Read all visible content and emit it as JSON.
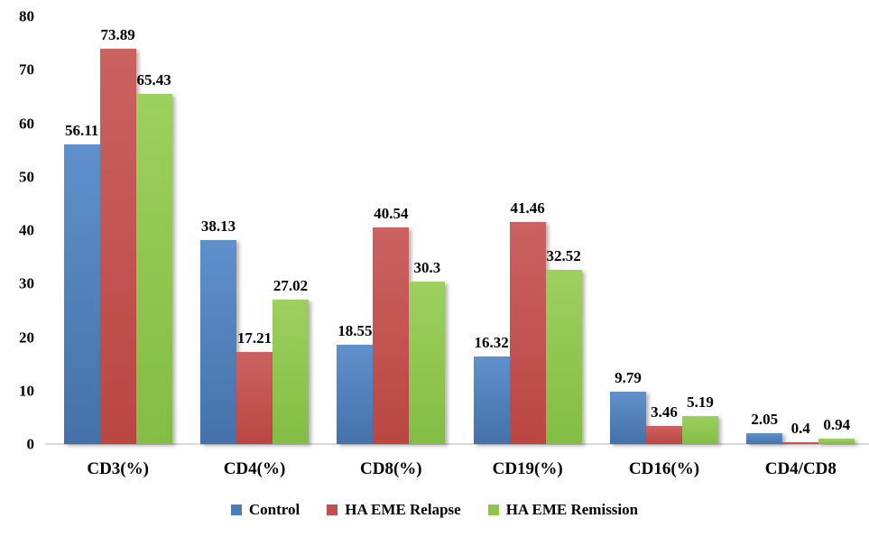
{
  "chart_data": {
    "type": "bar",
    "title": "",
    "xlabel": "",
    "ylabel": "",
    "categories": [
      "CD3(%)",
      "CD4(%)",
      "CD8(%)",
      "CD19(%)",
      "CD16(%)",
      "CD4/CD8"
    ],
    "series": [
      {
        "name": "Control",
        "color": "#4A7EBB",
        "gradient_top": "#6090CB",
        "gradient_bottom": "#4471A9",
        "values": [
          56.11,
          38.13,
          18.55,
          16.32,
          9.79,
          2.05
        ],
        "value_labels": [
          "56.11",
          "38.13",
          "18.55",
          "16.32",
          "9.79",
          "2.05"
        ]
      },
      {
        "name": "HA EME Relapse",
        "color": "#C0504D",
        "gradient_top": "#CB6260",
        "gradient_bottom": "#BA4642",
        "values": [
          73.89,
          17.21,
          40.54,
          41.46,
          3.46,
          0.4
        ],
        "value_labels": [
          "73.89",
          "17.21",
          "40.54",
          "41.46",
          "3.46",
          "0.4"
        ]
      },
      {
        "name": "HA EME Remission",
        "color": "#8CC645",
        "gradient_top": "#9CD05F",
        "gradient_bottom": "#83BD44",
        "values": [
          65.43,
          27.02,
          30.3,
          32.52,
          5.19,
          0.94
        ],
        "value_labels": [
          "65.43",
          "27.02",
          "30.3",
          "32.52",
          "5.19",
          "0.94"
        ]
      }
    ],
    "ylim": [
      0,
      80
    ],
    "ytick_step": 10,
    "yticks": [
      "0",
      "10",
      "20",
      "30",
      "40",
      "50",
      "60",
      "70",
      "80"
    ],
    "grid": false,
    "legend_position": "bottom",
    "background_color": "#FFFFFF",
    "text_color": "#000000",
    "axis_line_color": "#D9D9D9"
  }
}
